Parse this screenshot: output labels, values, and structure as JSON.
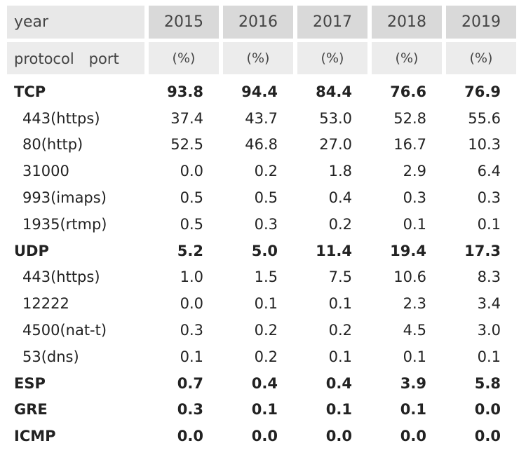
{
  "table": {
    "header": [
      {
        "label": "year",
        "columns": [
          "2015",
          "2016",
          "2017",
          "2018",
          "2019"
        ]
      },
      {
        "label": "protocol　port",
        "columns": [
          "(%)",
          "(%)",
          "(%)",
          "(%)",
          "(%)"
        ]
      }
    ],
    "protocols": [
      {
        "name": "TCP",
        "values": [
          "93.8",
          "94.4",
          "84.4",
          "76.6",
          "76.9"
        ],
        "ports": [
          {
            "name": "443(https)",
            "values": [
              "37.4",
              "43.7",
              "53.0",
              "52.8",
              "55.6"
            ]
          },
          {
            "name": "80(http)",
            "values": [
              "52.5",
              "46.8",
              "27.0",
              "16.7",
              "10.3"
            ]
          },
          {
            "name": "31000",
            "values": [
              "0.0",
              "0.2",
              "1.8",
              "2.9",
              "6.4"
            ]
          },
          {
            "name": "993(imaps)",
            "values": [
              "0.5",
              "0.5",
              "0.4",
              "0.3",
              "0.3"
            ]
          },
          {
            "name": "1935(rtmp)",
            "values": [
              "0.5",
              "0.3",
              "0.2",
              "0.1",
              "0.1"
            ]
          }
        ]
      },
      {
        "name": "UDP",
        "values": [
          "5.2",
          "5.0",
          "11.4",
          "19.4",
          "17.3"
        ],
        "ports": [
          {
            "name": "443(https)",
            "values": [
              "1.0",
              "1.5",
              "7.5",
              "10.6",
              "8.3"
            ]
          },
          {
            "name": "12222",
            "values": [
              "0.0",
              "0.1",
              "0.1",
              "2.3",
              "3.4"
            ]
          },
          {
            "name": "4500(nat-t)",
            "values": [
              "0.3",
              "0.2",
              "0.2",
              "4.5",
              "3.0"
            ]
          },
          {
            "name": "53(dns)",
            "values": [
              "0.1",
              "0.2",
              "0.1",
              "0.1",
              "0.1"
            ]
          }
        ]
      },
      {
        "name": "ESP",
        "values": [
          "0.7",
          "0.4",
          "0.4",
          "3.9",
          "5.8"
        ],
        "ports": []
      },
      {
        "name": "GRE",
        "values": [
          "0.3",
          "0.1",
          "0.1",
          "0.1",
          "0.0"
        ],
        "ports": []
      },
      {
        "name": "ICMP",
        "values": [
          "0.0",
          "0.0",
          "0.0",
          "0.0",
          "0.0"
        ],
        "ports": []
      }
    ]
  }
}
